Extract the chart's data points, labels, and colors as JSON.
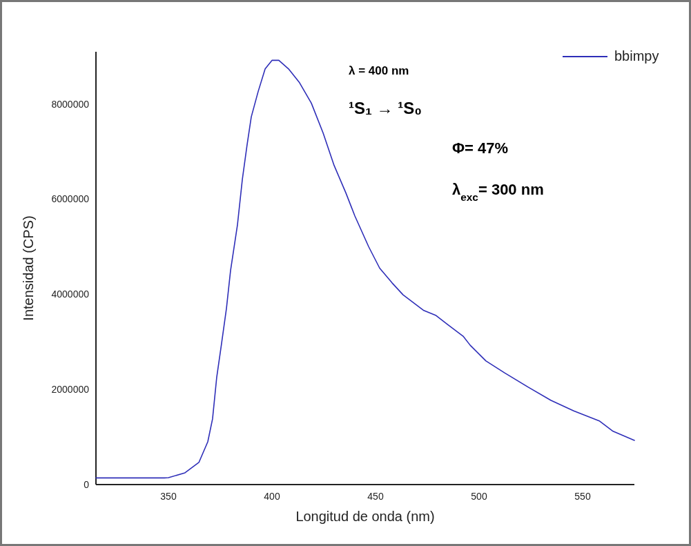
{
  "chart_data": {
    "type": "line",
    "xlabel": "Longitud de onda (nm)",
    "ylabel": "Intensidad (CPS)",
    "x": [
      315,
      330,
      348,
      350,
      358,
      364.7,
      369,
      371.3,
      373.3,
      375.7,
      378,
      380,
      383.3,
      385.7,
      388,
      390,
      393.3,
      396.7,
      400,
      403.3,
      408,
      413.3,
      419,
      424.7,
      430,
      435.7,
      440,
      446.7,
      452,
      458,
      463.3,
      473.3,
      479,
      484.7,
      492.3,
      495.7,
      503.3,
      512.3,
      523.3,
      534.7,
      545.7,
      558,
      564.7,
      575
    ],
    "series": [
      {
        "name": "bbimpy",
        "color": "#2e2eb8",
        "values": [
          140000,
          140000,
          140000,
          145000,
          247000,
          465000,
          900000,
          1380000,
          2250000,
          2980000,
          3700000,
          4500000,
          5450000,
          6420000,
          7150000,
          7730000,
          8260000,
          8740000,
          8920000,
          8920000,
          8740000,
          8450000,
          8020000,
          7390000,
          6710000,
          6130000,
          5650000,
          5000000,
          4550000,
          4240000,
          3990000,
          3660000,
          3560000,
          3370000,
          3120000,
          2930000,
          2600000,
          2350000,
          2060000,
          1770000,
          1550000,
          1340000,
          1120000,
          930000
        ]
      }
    ],
    "xlim": [
      315,
      575
    ],
    "xticks": [
      350,
      400,
      450,
      500,
      550
    ],
    "ylim": [
      0,
      9100000
    ],
    "yticks": [
      0,
      2000000,
      4000000,
      6000000,
      8000000
    ],
    "grid": false,
    "legend": "top right",
    "marker": "none",
    "line_style": "solid",
    "annotations": [
      "λ = 400 nm",
      "¹S₁ → ¹S₀",
      "Φ= 47%",
      "λ$_{exc}$= 300 nm"
    ]
  }
}
